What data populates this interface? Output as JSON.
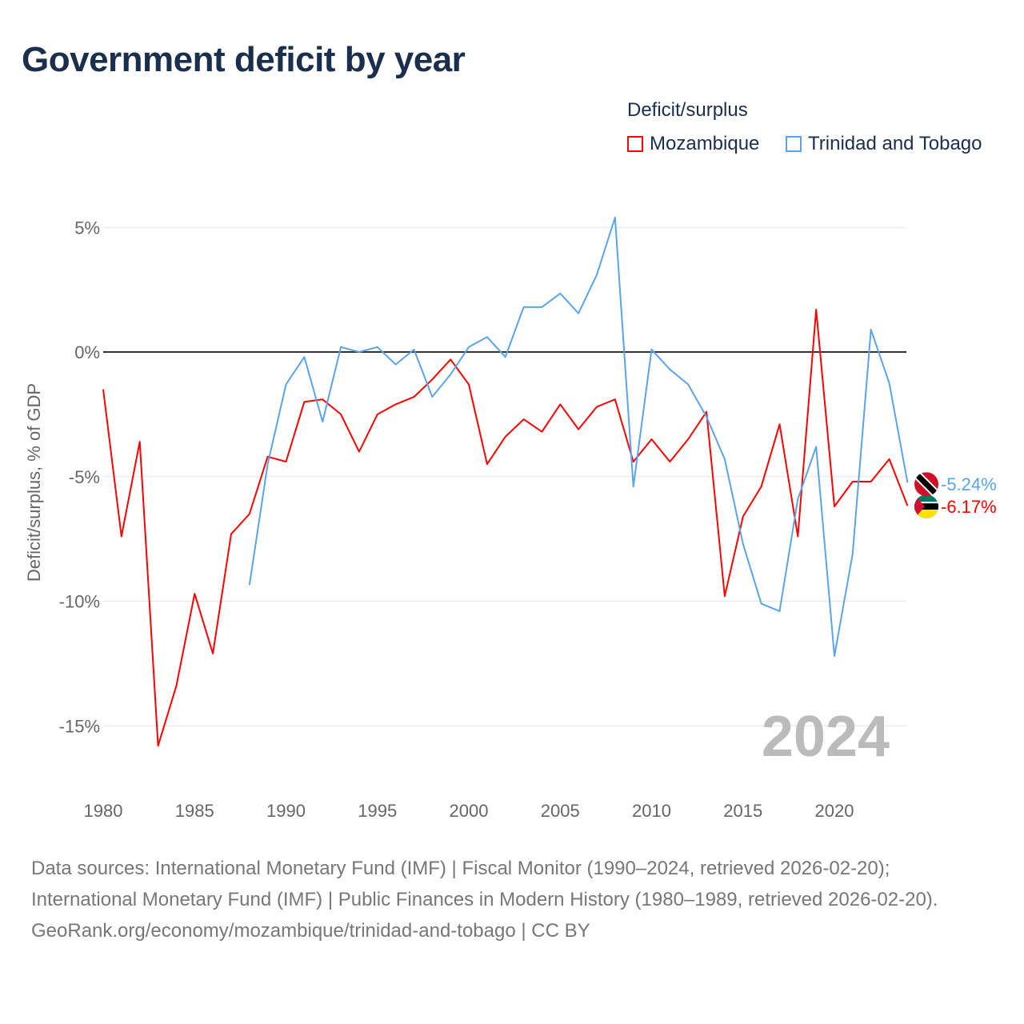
{
  "title": "Government deficit by year",
  "legend": {
    "title": "Deficit/surplus",
    "items": [
      {
        "label": "Mozambique",
        "color": "#ff0000"
      },
      {
        "label": "Trinidad and Tobago",
        "color": "#5aa5ea"
      }
    ]
  },
  "year_label": "2024",
  "footer": {
    "sources": "Data sources: International Monetary Fund (IMF) | Fiscal Monitor (1990–2024, retrieved 2026-02-20); International Monetary Fund (IMF) | Public Finances in Modern History (1980–1989, retrieved 2026-02-20).",
    "link": "GeoRank.org/economy/mozambique/trinidad-and-tobago | CC BY"
  },
  "chart_data": {
    "type": "line",
    "title": "Government deficit by year",
    "xlabel": "",
    "ylabel": "Deficit/surplus, % of GDP",
    "xlim": [
      1980,
      2024
    ],
    "ylim": [
      -17,
      6
    ],
    "x_ticks": [
      "1980",
      "1985",
      "1990",
      "1995",
      "2000",
      "2005",
      "2010",
      "2015",
      "2020"
    ],
    "x_tick_values": [
      1980,
      1985,
      1990,
      1995,
      2000,
      2005,
      2010,
      2015,
      2020
    ],
    "y_ticks": [
      "5%",
      "0%",
      "-5%",
      "-10%",
      "-15%"
    ],
    "y_tick_values": [
      5,
      0,
      -5,
      -10,
      -15
    ],
    "grid": true,
    "legend_position": "top-right",
    "series": [
      {
        "name": "Mozambique",
        "color": "#ff0000",
        "end_label": "-6.17%",
        "start_year": 1980,
        "values": [
          -1.5,
          -7.4,
          -3.6,
          -15.8,
          -13.4,
          -9.7,
          -12.1,
          -7.3,
          -6.5,
          -4.2,
          -4.4,
          -2.0,
          -1.9,
          -2.5,
          -4.0,
          -2.5,
          -2.1,
          -1.8,
          -1.1,
          -0.3,
          -1.3,
          -4.5,
          -3.4,
          -2.7,
          -3.2,
          -2.1,
          -3.1,
          -2.2,
          -1.9,
          -4.4,
          -3.5,
          -4.4,
          -3.5,
          -2.4,
          -9.8,
          -6.6,
          -5.4,
          -2.9,
          -7.4,
          1.7,
          -6.2,
          -5.2,
          -5.2,
          -4.3,
          -6.17
        ]
      },
      {
        "name": "Trinidad and Tobago",
        "color": "#5aa5ea",
        "end_label": "-5.24%",
        "start_year": 1988,
        "values": [
          -9.35,
          -4.5,
          -1.3,
          -0.2,
          -2.8,
          0.2,
          0.0,
          0.2,
          -0.5,
          0.1,
          -1.8,
          -0.9,
          0.2,
          0.6,
          -0.2,
          1.8,
          1.8,
          2.35,
          1.55,
          3.1,
          5.4,
          -5.4,
          0.1,
          -0.7,
          -1.3,
          -2.6,
          -4.3,
          -7.7,
          -10.1,
          -10.4,
          -5.9,
          -3.8,
          -12.2,
          -8.1,
          0.9,
          -1.25,
          -5.24
        ]
      }
    ]
  }
}
